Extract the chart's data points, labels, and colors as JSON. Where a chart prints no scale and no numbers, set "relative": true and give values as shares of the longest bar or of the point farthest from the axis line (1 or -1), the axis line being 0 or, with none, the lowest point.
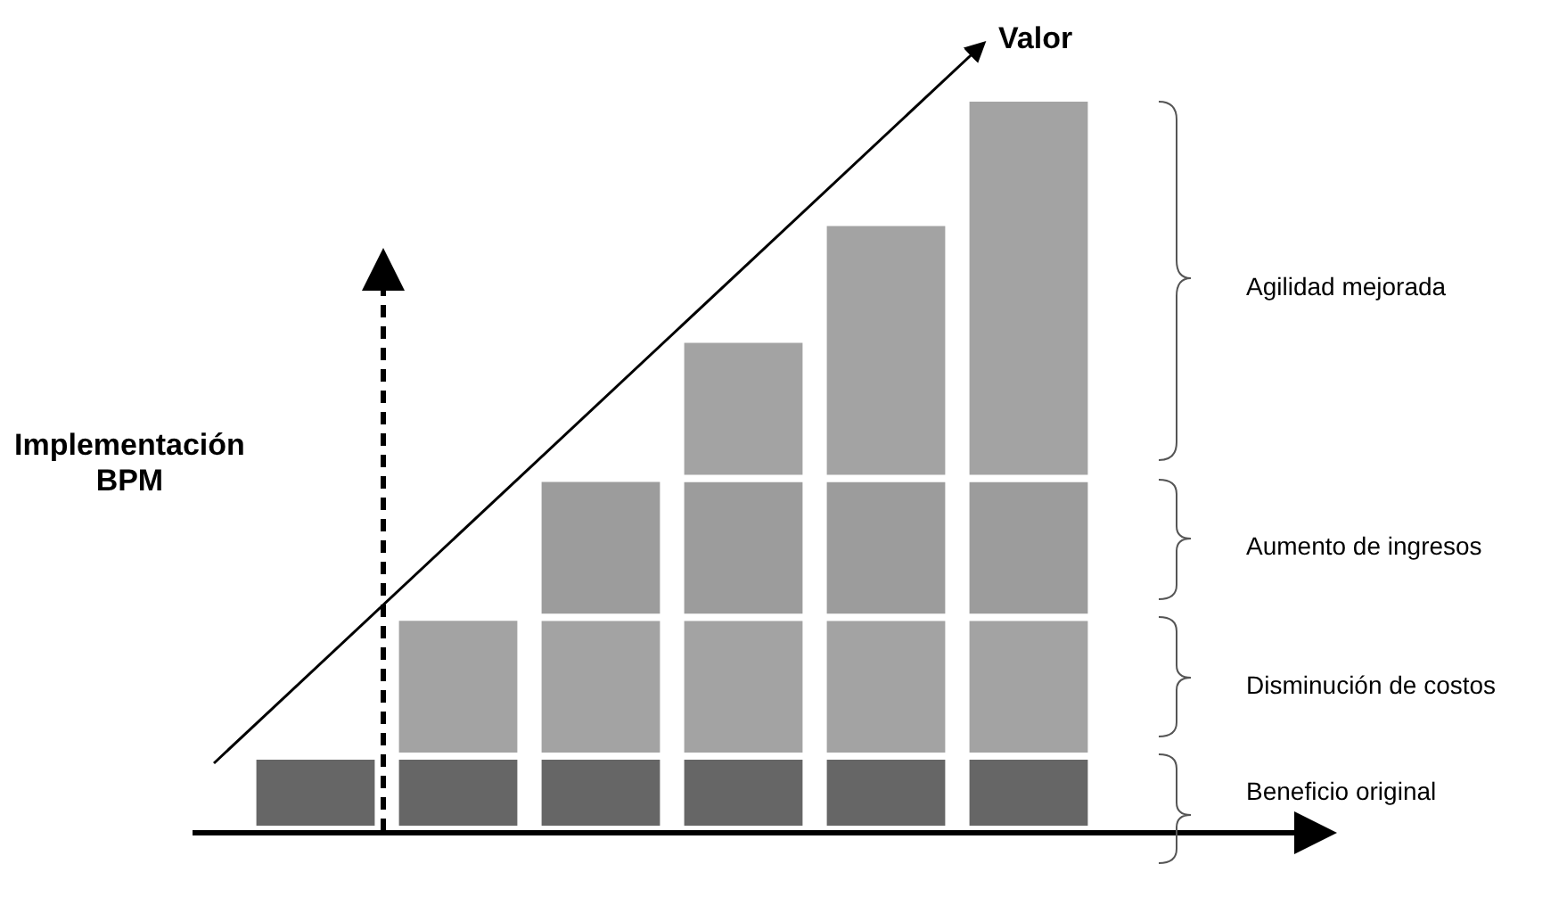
{
  "chart_data": {
    "type": "bar",
    "stacked": true,
    "relative": true,
    "tick_labels": false,
    "legend": false,
    "categories": [
      null,
      null,
      null,
      null,
      null,
      null
    ],
    "series": [
      {
        "name": "Beneficio original",
        "color": "#666666",
        "values": [
          0.1,
          0.1,
          0.1,
          0.1,
          0.1,
          0.1
        ]
      },
      {
        "name": "Disminución de costos",
        "color": "#a3a3a3",
        "values": [
          null,
          0.19,
          0.19,
          0.19,
          0.19,
          0.19
        ]
      },
      {
        "name": "Aumento de ingresos",
        "color": "#9c9c9c",
        "values": [
          null,
          null,
          0.19,
          0.19,
          0.19,
          0.19
        ]
      },
      {
        "name": "Agilidad mejorada",
        "color": "#a3a3a3",
        "values": [
          null,
          null,
          null,
          0.19,
          0.35,
          0.52
        ]
      }
    ],
    "annotations": [
      "Valor",
      "Implementación\nBPM"
    ]
  }
}
